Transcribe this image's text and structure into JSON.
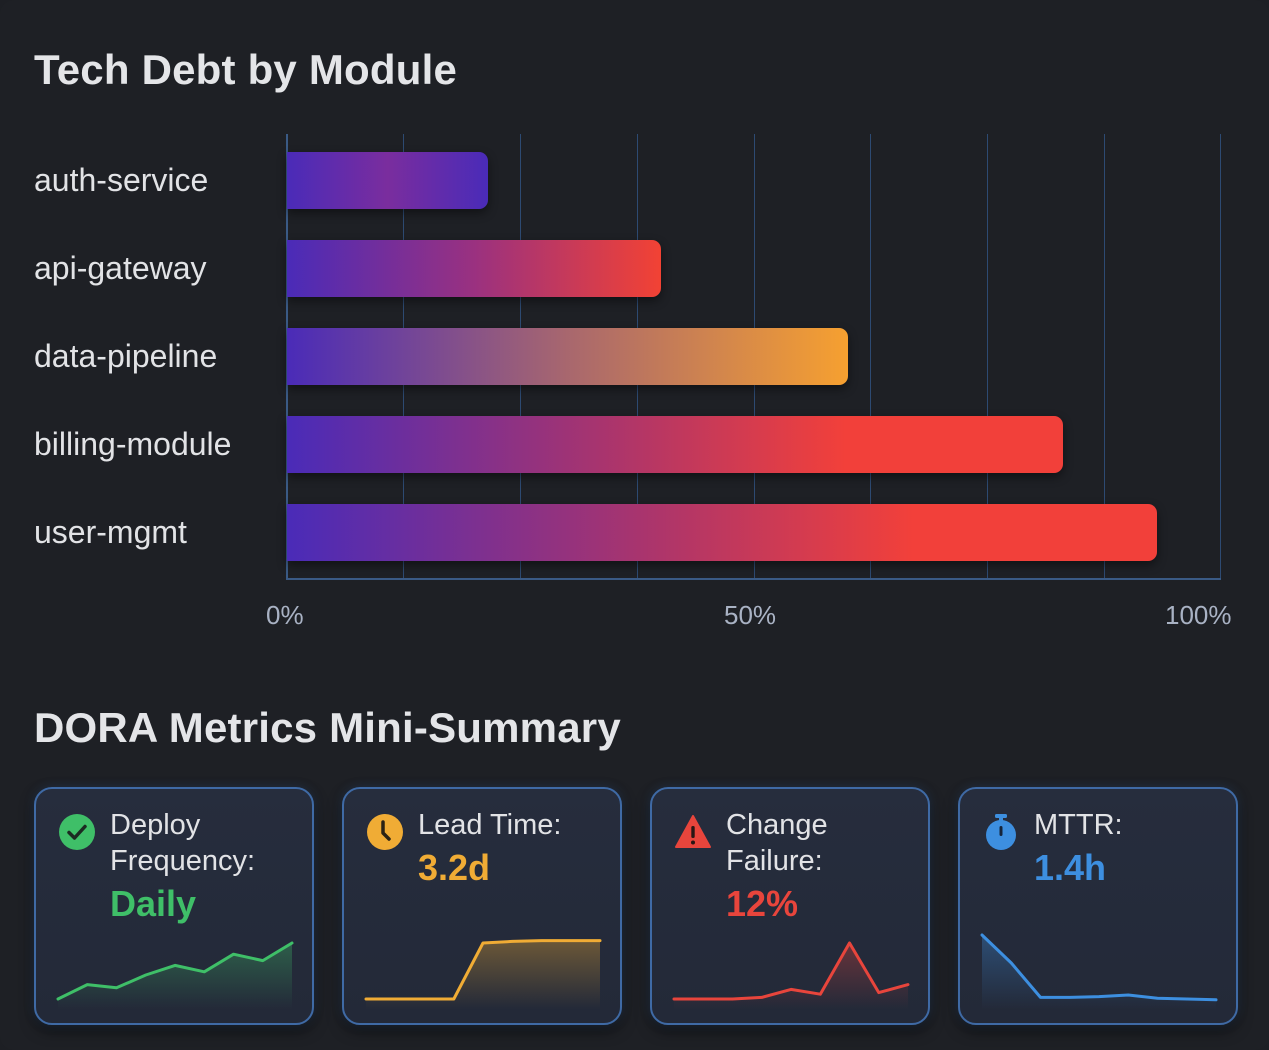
{
  "section_tech_debt": {
    "title": "Tech Debt by Module"
  },
  "section_dora": {
    "title": "DORA Metrics Mini-Summary"
  },
  "chart_data": [
    {
      "type": "bar",
      "orientation": "horizontal",
      "title": "Tech Debt by Module",
      "categories": [
        "auth-service",
        "api-gateway",
        "data-pipeline",
        "billing-module",
        "user-mgmt"
      ],
      "values": [
        21.5,
        40,
        60,
        83,
        93
      ],
      "unit": "%",
      "xlabel": "",
      "ylabel": "",
      "xlim": [
        0,
        100
      ],
      "x_ticks": [
        "0%",
        "50%",
        "100%"
      ],
      "grid": true,
      "grid_step": 12.5,
      "legend": null,
      "bar_gradients": [
        [
          "#4a2bb8",
          "#7a2d9e",
          "#4a2bb8"
        ],
        [
          "#4a2bb8",
          "#9a3180",
          "#f24234"
        ],
        [
          "#4a2bb8",
          "#a8676e",
          "#f6a030"
        ],
        [
          "#4a2bb8",
          "#a7346f",
          "#f2403a"
        ],
        [
          "#4a2bb8",
          "#a7346f",
          "#f2403a"
        ]
      ]
    },
    {
      "type": "line",
      "title": "Deploy Frequency",
      "x": [
        0,
        1,
        2,
        3,
        4,
        5,
        6,
        7,
        8
      ],
      "values": [
        10,
        28,
        24,
        40,
        52,
        44,
        66,
        58,
        80
      ],
      "color": "#3fbf68"
    },
    {
      "type": "line",
      "title": "Lead Time",
      "x": [
        0,
        1,
        2,
        3,
        4,
        5,
        6,
        7,
        8
      ],
      "values": [
        10,
        10,
        10,
        10,
        80,
        82,
        83,
        83,
        83
      ],
      "color": "#f0ac35"
    },
    {
      "type": "line",
      "title": "Change Failure",
      "x": [
        0,
        1,
        2,
        3,
        4,
        5,
        6,
        7,
        8
      ],
      "values": [
        10,
        10,
        10,
        12,
        22,
        16,
        80,
        18,
        28
      ],
      "color": "#e8453c"
    },
    {
      "type": "line",
      "title": "MTTR",
      "x": [
        0,
        1,
        2,
        3,
        4,
        5,
        6,
        7,
        8
      ],
      "values": [
        90,
        55,
        12,
        12,
        13,
        15,
        11,
        10,
        9
      ],
      "color": "#3d8fe0"
    }
  ],
  "dora_cards": [
    {
      "label_line1": "Deploy",
      "label_line2": "Frequency:",
      "value": "Daily",
      "icon": "check-circle-icon",
      "color": "#3fbf68"
    },
    {
      "label_line1": "Lead Time:",
      "label_line2": "",
      "value": "3.2d",
      "icon": "clock-icon",
      "color": "#f0ac35"
    },
    {
      "label_line1": "Change",
      "label_line2": "Failure:",
      "value": "12%",
      "icon": "warning-triangle-icon",
      "color": "#e8453c"
    },
    {
      "label_line1": "MTTR:",
      "label_line2": "",
      "value": "1.4h",
      "icon": "stopwatch-icon",
      "color": "#3d8fe0"
    }
  ]
}
